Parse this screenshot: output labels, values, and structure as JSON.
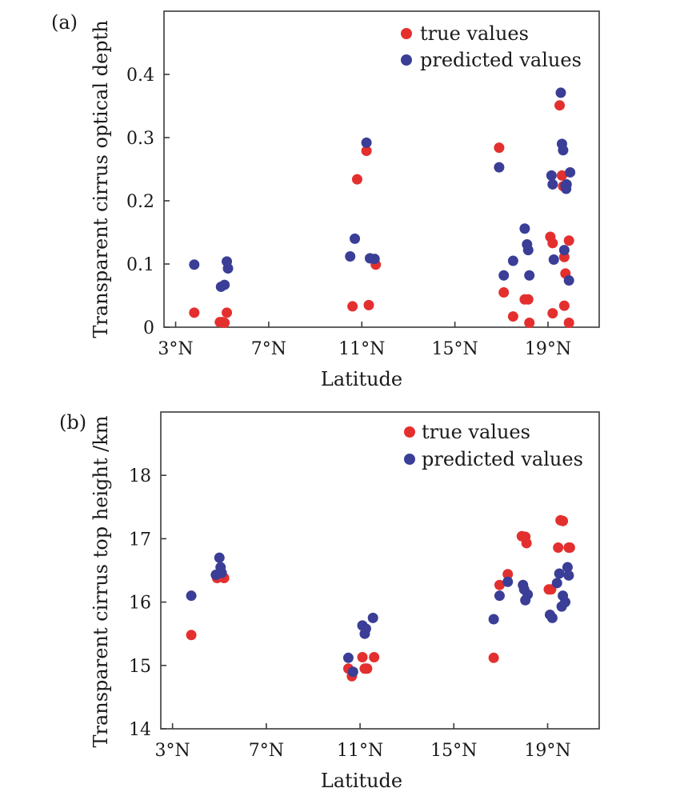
{
  "colors": {
    "true": "#e3302f",
    "predicted": "#3a3e96"
  },
  "chart_data": [
    {
      "type": "scatter",
      "panel": "(a)",
      "xlabel": "Latitude",
      "ylabel": "Transparent cirrus optical depth",
      "xlim": [
        2.5,
        21.2
      ],
      "ylim": [
        0,
        0.5
      ],
      "xticks": [
        3,
        7,
        11,
        15,
        19
      ],
      "xtick_labels": [
        "3°N",
        "7°N",
        "11°N",
        "15°N",
        "19°N"
      ],
      "yticks": [
        0,
        0.1,
        0.2,
        0.3,
        0.4
      ],
      "ytick_labels": [
        "0",
        "0.1",
        "0.2",
        "0.3",
        "0.4"
      ],
      "legend": [
        "true values",
        "predicted values"
      ],
      "legend_position": "top-right",
      "series": [
        {
          "name": "true values",
          "points": [
            [
              3.8,
              0.023
            ],
            [
              4.9,
              0.008
            ],
            [
              5.0,
              0.008
            ],
            [
              5.2,
              0.023
            ],
            [
              5.1,
              0.007
            ],
            [
              10.6,
              0.033
            ],
            [
              10.8,
              0.234
            ],
            [
              11.2,
              0.279
            ],
            [
              11.3,
              0.035
            ],
            [
              11.6,
              0.099
            ],
            [
              16.9,
              0.284
            ],
            [
              17.1,
              0.055
            ],
            [
              17.5,
              0.017
            ],
            [
              18.0,
              0.044
            ],
            [
              18.15,
              0.044
            ],
            [
              18.2,
              0.007
            ],
            [
              19.1,
              0.143
            ],
            [
              19.2,
              0.133
            ],
            [
              19.2,
              0.022
            ],
            [
              19.5,
              0.351
            ],
            [
              19.6,
              0.24
            ],
            [
              19.65,
              0.223
            ],
            [
              19.7,
              0.111
            ],
            [
              19.7,
              0.034
            ],
            [
              19.75,
              0.085
            ],
            [
              19.9,
              0.137
            ],
            [
              19.9,
              0.007
            ]
          ]
        },
        {
          "name": "predicted values",
          "points": [
            [
              3.8,
              0.099
            ],
            [
              4.95,
              0.064
            ],
            [
              5.1,
              0.067
            ],
            [
              5.2,
              0.104
            ],
            [
              5.25,
              0.093
            ],
            [
              10.5,
              0.112
            ],
            [
              10.7,
              0.14
            ],
            [
              11.2,
              0.292
            ],
            [
              11.35,
              0.109
            ],
            [
              11.55,
              0.108
            ],
            [
              16.9,
              0.253
            ],
            [
              17.1,
              0.082
            ],
            [
              17.5,
              0.105
            ],
            [
              18.0,
              0.156
            ],
            [
              18.1,
              0.131
            ],
            [
              18.15,
              0.122
            ],
            [
              18.2,
              0.082
            ],
            [
              19.15,
              0.24
            ],
            [
              19.2,
              0.226
            ],
            [
              19.25,
              0.107
            ],
            [
              19.55,
              0.371
            ],
            [
              19.6,
              0.29
            ],
            [
              19.65,
              0.28
            ],
            [
              19.7,
              0.122
            ],
            [
              19.75,
              0.224
            ],
            [
              19.78,
              0.219
            ],
            [
              19.8,
              0.226
            ],
            [
              19.9,
              0.074
            ],
            [
              19.95,
              0.245
            ]
          ]
        }
      ]
    },
    {
      "type": "scatter",
      "panel": "(b)",
      "xlabel": "Latitude",
      "ylabel": "Transparent cirrus top height /km",
      "xlim": [
        2.5,
        21.2
      ],
      "ylim": [
        14,
        19
      ],
      "xticks": [
        3,
        7,
        11,
        15,
        19
      ],
      "xtick_labels": [
        "3°N",
        "7°N",
        "11°N",
        "15°N",
        "19°N"
      ],
      "yticks": [
        14,
        15,
        16,
        17,
        18
      ],
      "ytick_labels": [
        "14",
        "15",
        "16",
        "17",
        "18"
      ],
      "legend": [
        "true values",
        "predicted values"
      ],
      "legend_position": "top-right",
      "series": [
        {
          "name": "true values",
          "points": [
            [
              3.8,
              15.48
            ],
            [
              4.9,
              16.38
            ],
            [
              5.05,
              16.4
            ],
            [
              5.2,
              16.38
            ],
            [
              10.5,
              14.95
            ],
            [
              10.65,
              14.83
            ],
            [
              11.1,
              15.13
            ],
            [
              11.2,
              14.95
            ],
            [
              11.3,
              14.95
            ],
            [
              11.6,
              15.13
            ],
            [
              16.7,
              15.12
            ],
            [
              16.95,
              16.27
            ],
            [
              17.3,
              16.44
            ],
            [
              17.9,
              17.04
            ],
            [
              18.05,
              17.03
            ],
            [
              18.1,
              16.93
            ],
            [
              19.05,
              16.2
            ],
            [
              19.15,
              16.2
            ],
            [
              19.45,
              16.86
            ],
            [
              19.55,
              17.29
            ],
            [
              19.65,
              17.28
            ],
            [
              19.9,
              16.86
            ],
            [
              19.95,
              16.86
            ]
          ]
        },
        {
          "name": "predicted values",
          "points": [
            [
              3.8,
              16.1
            ],
            [
              4.85,
              16.43
            ],
            [
              5.0,
              16.7
            ],
            [
              5.05,
              16.55
            ],
            [
              5.1,
              16.46
            ],
            [
              10.5,
              15.12
            ],
            [
              10.7,
              14.9
            ],
            [
              11.1,
              15.63
            ],
            [
              11.2,
              15.5
            ],
            [
              11.25,
              15.58
            ],
            [
              11.55,
              15.75
            ],
            [
              16.7,
              15.73
            ],
            [
              16.95,
              16.1
            ],
            [
              17.3,
              16.32
            ],
            [
              17.95,
              16.27
            ],
            [
              18.0,
              16.2
            ],
            [
              18.05,
              16.03
            ],
            [
              18.15,
              16.12
            ],
            [
              19.1,
              15.8
            ],
            [
              19.2,
              15.75
            ],
            [
              19.4,
              16.3
            ],
            [
              19.5,
              16.45
            ],
            [
              19.6,
              15.93
            ],
            [
              19.65,
              16.1
            ],
            [
              19.75,
              16.0
            ],
            [
              19.85,
              16.55
            ],
            [
              19.9,
              16.42
            ]
          ]
        }
      ]
    }
  ]
}
